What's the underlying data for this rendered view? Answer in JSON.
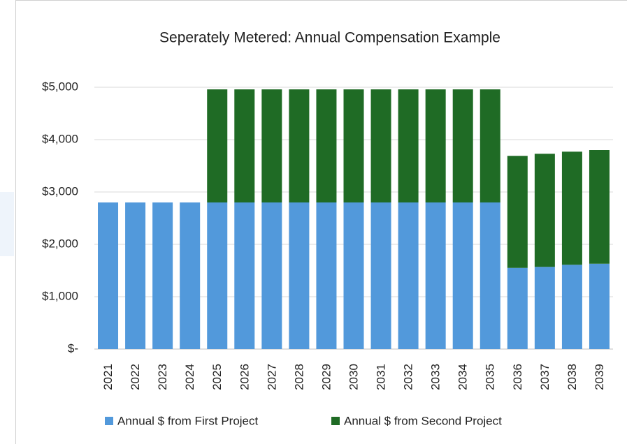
{
  "chart_data": {
    "type": "stacked_bar",
    "title": "Seperately Metered: Annual Compensation Example",
    "categories": [
      "2021",
      "2022",
      "2023",
      "2024",
      "2025",
      "2026",
      "2027",
      "2028",
      "2029",
      "2030",
      "2031",
      "2032",
      "2033",
      "2034",
      "2035",
      "2036",
      "2037",
      "2038",
      "2039"
    ],
    "series": [
      {
        "name": "Annual $ from First Project",
        "color": "#5299db",
        "values": [
          2800,
          2800,
          2800,
          2800,
          2800,
          2800,
          2800,
          2800,
          2800,
          2800,
          2800,
          2800,
          2800,
          2800,
          2800,
          1550,
          1570,
          1610,
          1630
        ]
      },
      {
        "name": "Annual $ from Second Project",
        "color": "#1f6b25",
        "values": [
          0,
          0,
          0,
          0,
          2160,
          2160,
          2160,
          2160,
          2160,
          2160,
          2160,
          2160,
          2160,
          2160,
          2160,
          2140,
          2160,
          2160,
          2170
        ]
      }
    ],
    "ylim": [
      0,
      5000
    ],
    "yticks": [
      {
        "value": 0,
        "label": "$-"
      },
      {
        "value": 1000,
        "label": "$1,000"
      },
      {
        "value": 2000,
        "label": "$2,000"
      },
      {
        "value": 3000,
        "label": "$3,000"
      },
      {
        "value": 4000,
        "label": "$4,000"
      },
      {
        "value": 5000,
        "label": "$5,000"
      }
    ],
    "grid": true,
    "legend": "bottom"
  }
}
